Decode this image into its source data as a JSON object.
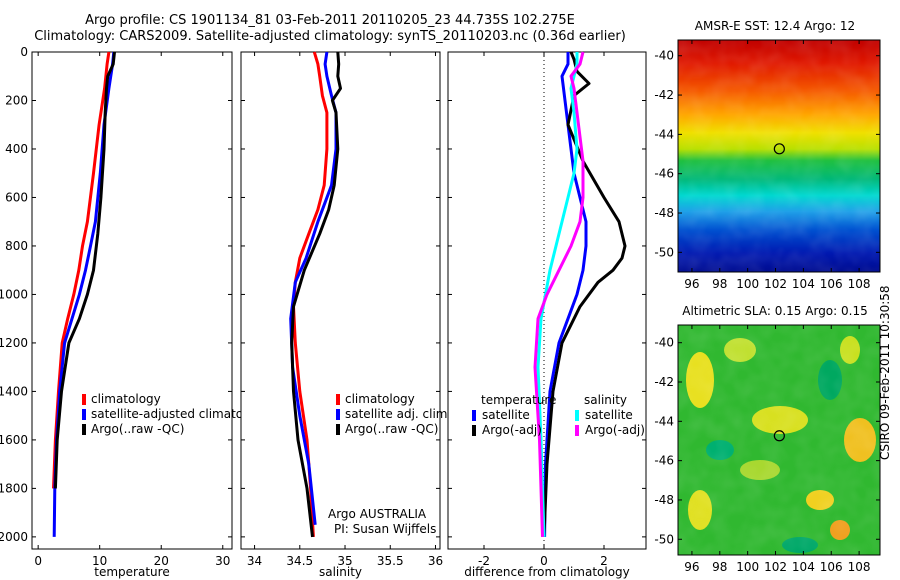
{
  "header": {
    "title_line1": "Argo profile: CS 1901134_81 03-Feb-2011 20110205_23 44.735S 102.275E",
    "title_line2": "Climatology: CARS2009. Satellite-adjusted climatology: synTS_20110203.nc (0.36d earlier)"
  },
  "maps": {
    "sst_title": "AMSR-E SST: 12.4 Argo: 12",
    "sla_title": "Altimetric SLA: 0.15 Argo: 0.15",
    "x_ticks": [
      "96",
      "98",
      "100",
      "102",
      "104",
      "106",
      "108"
    ],
    "y_ticks": [
      "-40",
      "-42",
      "-44",
      "-46",
      "-48",
      "-50"
    ],
    "float_position": {
      "lon": 102.275,
      "lat": -44.735
    }
  },
  "footer": {
    "credit": "CSIRO 09-Feb-2011 10:30:58"
  },
  "annotations": {
    "argo_country": "Argo AUSTRALIA",
    "pi": "PI: Susan Wijffels"
  },
  "colors": {
    "climatology": "#ff0000",
    "satellite": "#0000ff",
    "argo": "#000000",
    "satellite_salinity": "#00ffff",
    "argo_salinity": "#ff00ff"
  },
  "chart_data": [
    {
      "type": "line",
      "xlabel": "temperature",
      "ylabel": "",
      "xlim": [
        -1,
        31.5
      ],
      "ylim": [
        2050,
        0
      ],
      "x_ticks": [
        "0",
        "10",
        "20",
        "30"
      ],
      "y_ticks": [
        "0",
        "200",
        "400",
        "600",
        "800",
        "1000",
        "1200",
        "1400",
        "1600",
        "1800",
        "2000"
      ],
      "legend": [
        "climatology",
        "satellite-adjusted climatology",
        "Argo(..raw -QC)"
      ],
      "series": [
        {
          "name": "climatology",
          "color": "#ff0000",
          "x": [
            11.5,
            11.2,
            10.8,
            9.9,
            9.0,
            8.0,
            7.2,
            6.6,
            5.8,
            4.8,
            3.9,
            3.3,
            2.8,
            2.5
          ],
          "y": [
            0,
            50,
            150,
            300,
            500,
            700,
            800,
            900,
            1000,
            1100,
            1200,
            1400,
            1600,
            1800
          ]
        },
        {
          "name": "satellite-adjusted climatology",
          "color": "#0000ff",
          "x": [
            12.3,
            12.1,
            11.5,
            10.7,
            10.1,
            9.3,
            8.5,
            7.7,
            6.7,
            5.5,
            4.3,
            3.5,
            3.0,
            2.7,
            2.6
          ],
          "y": [
            0,
            50,
            150,
            300,
            500,
            700,
            800,
            900,
            1000,
            1100,
            1200,
            1400,
            1600,
            1800,
            2000
          ]
        },
        {
          "name": "Argo(..raw -QC)",
          "color": "#000000",
          "x": [
            12.4,
            12.2,
            11.3,
            11.1,
            10.9,
            10.7,
            10.2,
            9.7,
            9.0,
            8.0,
            6.7,
            5.0,
            3.8,
            3.1,
            2.8
          ],
          "y": [
            0,
            50,
            100,
            150,
            250,
            400,
            600,
            750,
            900,
            1000,
            1100,
            1200,
            1400,
            1600,
            1800
          ]
        }
      ]
    },
    {
      "type": "line",
      "xlabel": "salinity",
      "ylabel": "",
      "xlim": [
        33.85,
        36.05
      ],
      "ylim": [
        2050,
        0
      ],
      "x_ticks": [
        "34",
        "34.5",
        "35",
        "35.5",
        "36"
      ],
      "legend": [
        "climatology",
        "satellite adj. clim.",
        "Argo(..raw -QC)"
      ],
      "series": [
        {
          "name": "climatology",
          "color": "#ff0000",
          "x": [
            34.66,
            34.7,
            34.72,
            34.75,
            34.8,
            34.8,
            34.77,
            34.7,
            34.6,
            34.5,
            34.45,
            34.43,
            34.45,
            34.5,
            34.58,
            34.62,
            34.65
          ],
          "y": [
            0,
            50,
            100,
            180,
            250,
            400,
            550,
            650,
            750,
            850,
            950,
            1050,
            1200,
            1400,
            1600,
            1800,
            2000
          ]
        },
        {
          "name": "satellite adj. clim.",
          "color": "#0000ff",
          "x": [
            34.8,
            34.78,
            34.8,
            34.85,
            34.9,
            34.9,
            34.85,
            34.7,
            34.57,
            34.45,
            34.4,
            34.42,
            34.5,
            34.6,
            34.67
          ],
          "y": [
            0,
            50,
            100,
            180,
            250,
            400,
            550,
            700,
            850,
            950,
            1100,
            1300,
            1500,
            1700,
            1950
          ]
        },
        {
          "name": "Argo(..raw -QC)",
          "color": "#000000",
          "x": [
            34.92,
            34.93,
            34.92,
            34.95,
            34.86,
            34.9,
            34.92,
            34.88,
            34.82,
            34.72,
            34.55,
            34.43,
            34.41,
            34.43,
            34.48,
            34.58,
            34.64
          ],
          "y": [
            0,
            50,
            100,
            150,
            200,
            250,
            400,
            550,
            650,
            750,
            900,
            1050,
            1200,
            1400,
            1600,
            1800,
            2000
          ]
        }
      ]
    },
    {
      "type": "line",
      "xlabel": "difference from climatology",
      "ylabel": "",
      "xlim": [
        -3.2,
        3.4
      ],
      "ylim": [
        2050,
        0
      ],
      "x_ticks": [
        "-2",
        "0",
        "2"
      ],
      "legend_titles": [
        "temperature",
        "salinity"
      ],
      "legend": [
        "satellite",
        "Argo(-adj)",
        "satellite",
        "Argo(-adj)"
      ],
      "series": [
        {
          "name": "satellite",
          "group": "temperature",
          "color": "#0000ff",
          "x": [
            0.8,
            0.8,
            0.6,
            0.7,
            0.8,
            0.9,
            1.0,
            1.2,
            1.4,
            1.4,
            1.3,
            1.1,
            0.8,
            0.5,
            0.2,
            0.05,
            0.02
          ],
          "y": [
            0,
            50,
            100,
            200,
            300,
            400,
            500,
            600,
            700,
            800,
            900,
            1000,
            1100,
            1200,
            1400,
            1700,
            2000
          ]
        },
        {
          "name": "Argo(-adj)",
          "group": "temperature",
          "color": "#000000",
          "x": [
            0.9,
            1.0,
            1.1,
            1.5,
            1.0,
            0.8,
            1.3,
            2.0,
            2.5,
            2.7,
            2.6,
            2.3,
            1.8,
            1.2,
            0.6,
            0.3,
            0.1,
            0.0
          ],
          "y": [
            0,
            30,
            80,
            130,
            180,
            300,
            450,
            600,
            700,
            800,
            850,
            900,
            950,
            1050,
            1200,
            1400,
            1700,
            2000
          ]
        },
        {
          "name": "satellite",
          "group": "salinity",
          "color": "#00ffff",
          "x": [
            1.1,
            1.1,
            0.9,
            1.0,
            1.1,
            1.0,
            0.8,
            0.5,
            0.2,
            -0.1,
            -0.2,
            -0.1,
            0.0
          ],
          "y": [
            0,
            50,
            150,
            250,
            400,
            500,
            600,
            750,
            900,
            1100,
            1300,
            1600,
            2000
          ]
        },
        {
          "name": "Argo(-adj)",
          "group": "salinity",
          "color": "#ff00ff",
          "x": [
            1.3,
            1.2,
            0.9,
            1.0,
            1.1,
            1.3,
            1.3,
            1.2,
            0.9,
            0.5,
            0.1,
            -0.2,
            -0.3,
            -0.15,
            -0.05
          ],
          "y": [
            0,
            50,
            100,
            150,
            250,
            450,
            600,
            700,
            800,
            900,
            1000,
            1100,
            1300,
            1600,
            2000
          ]
        }
      ]
    }
  ]
}
